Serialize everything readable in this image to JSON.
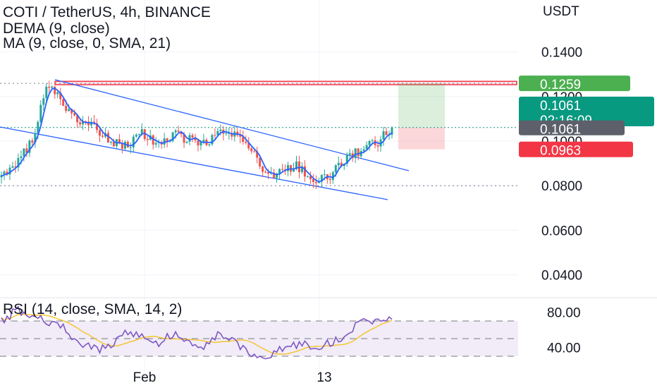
{
  "header": {
    "title": "COTI / TetherUS, 4h, BINANCE",
    "indicator1": "DEMA (9, close)",
    "indicator2": "MA (9, close, 0, SMA, 21)"
  },
  "rsi": {
    "title": "RSI (14, close, SMA, 14, 2)",
    "ticks": [
      "80.00",
      "40.00"
    ]
  },
  "colors": {
    "up": "#26a69a",
    "down": "#ef5350",
    "dema": "#2962ff",
    "channel": "#2962ff",
    "rsi_line": "#7e57c2",
    "rsi_ma": "#f7c325",
    "take_profit": "#4caf50",
    "stop": "#f23645",
    "current": "#089981",
    "last_gray": "#5d606b"
  },
  "chart_data": {
    "type": "candlestick",
    "symbol": "COTI / TetherUS",
    "timeframe": "4h",
    "exchange": "BINANCE",
    "currency": "USDT",
    "y_ticks": [
      "0.1400",
      "0.1200",
      "0.1000",
      "0.0800",
      "0.0600",
      "0.0400"
    ],
    "ylim": [
      0.03,
      0.16
    ],
    "x_ticks": [
      "Feb",
      "13"
    ],
    "horizontal_levels": [
      0.1259,
      0.08
    ],
    "resistance_zone": [
      0.1253,
      0.1268
    ],
    "position": {
      "entry": 0.1061,
      "take_profit": 0.1259,
      "stop_loss": 0.0963
    },
    "price_labels": {
      "take_profit": "0.1259",
      "current": "0.1061",
      "countdown": "02:16:09",
      "last": "0.1061",
      "stop_loss": "0.0963"
    },
    "close_path": [
      0.084,
      0.09,
      0.101,
      0.1265,
      0.116,
      0.108,
      0.106,
      0.1,
      0.098,
      0.104,
      0.097,
      0.103,
      0.101,
      0.099,
      0.104,
      0.102,
      0.097,
      0.084,
      0.087,
      0.089,
      0.082,
      0.084,
      0.092,
      0.096,
      0.099,
      0.1061
    ],
    "rsi_path": [
      70,
      82,
      75,
      70,
      62,
      45,
      38,
      40,
      58,
      52,
      44,
      56,
      48,
      42,
      56,
      44,
      30,
      28,
      38,
      44,
      40,
      45,
      52,
      72,
      68,
      76
    ],
    "rsi_ylim": [
      25,
      90
    ],
    "rsi_levels": [
      70,
      50,
      30
    ]
  }
}
